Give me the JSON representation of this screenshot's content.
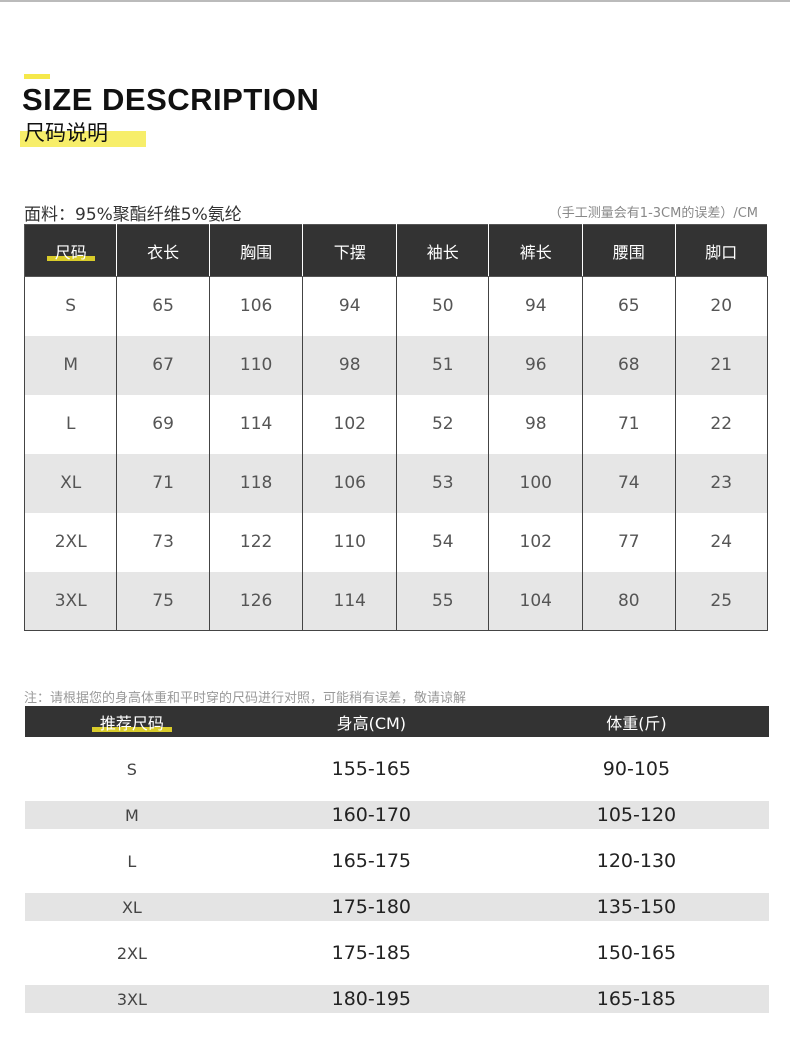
{
  "header": {
    "title_en": "SIZE DESCRIPTION",
    "title_cn": "尺码说明"
  },
  "fabric": "面料：95%聚酯纤维5%氨纶",
  "measure_note": "（手工测量会有1-3CM的误差）/CM",
  "accent_color": "#f5e84a",
  "size_table": {
    "headers": [
      "尺码",
      "衣长",
      "胸围",
      "下摆",
      "袖长",
      "裤长",
      "腰围",
      "脚口"
    ],
    "rows": [
      [
        "S",
        "65",
        "106",
        "94",
        "50",
        "94",
        "65",
        "20"
      ],
      [
        "M",
        "67",
        "110",
        "98",
        "51",
        "96",
        "68",
        "21"
      ],
      [
        "L",
        "69",
        "114",
        "102",
        "52",
        "98",
        "71",
        "22"
      ],
      [
        "XL",
        "71",
        "118",
        "106",
        "53",
        "100",
        "74",
        "23"
      ],
      [
        "2XL",
        "73",
        "122",
        "110",
        "54",
        "102",
        "77",
        "24"
      ],
      [
        "3XL",
        "75",
        "126",
        "114",
        "55",
        "104",
        "80",
        "25"
      ]
    ]
  },
  "recommend_note": "注：请根据您的身高体重和平时穿的尺码进行对照，可能稍有误差，敬请谅解",
  "recommend_table": {
    "headers": [
      "推荐尺码",
      "身高(CM)",
      "体重(斤)"
    ],
    "rows": [
      [
        "S",
        "155-165",
        "90-105"
      ],
      [
        "M",
        "160-170",
        "105-120"
      ],
      [
        "L",
        "165-175",
        "120-130"
      ],
      [
        "XL",
        "175-180",
        "135-150"
      ],
      [
        "2XL",
        "175-185",
        "150-165"
      ],
      [
        "3XL",
        "180-195",
        "165-185"
      ]
    ]
  }
}
